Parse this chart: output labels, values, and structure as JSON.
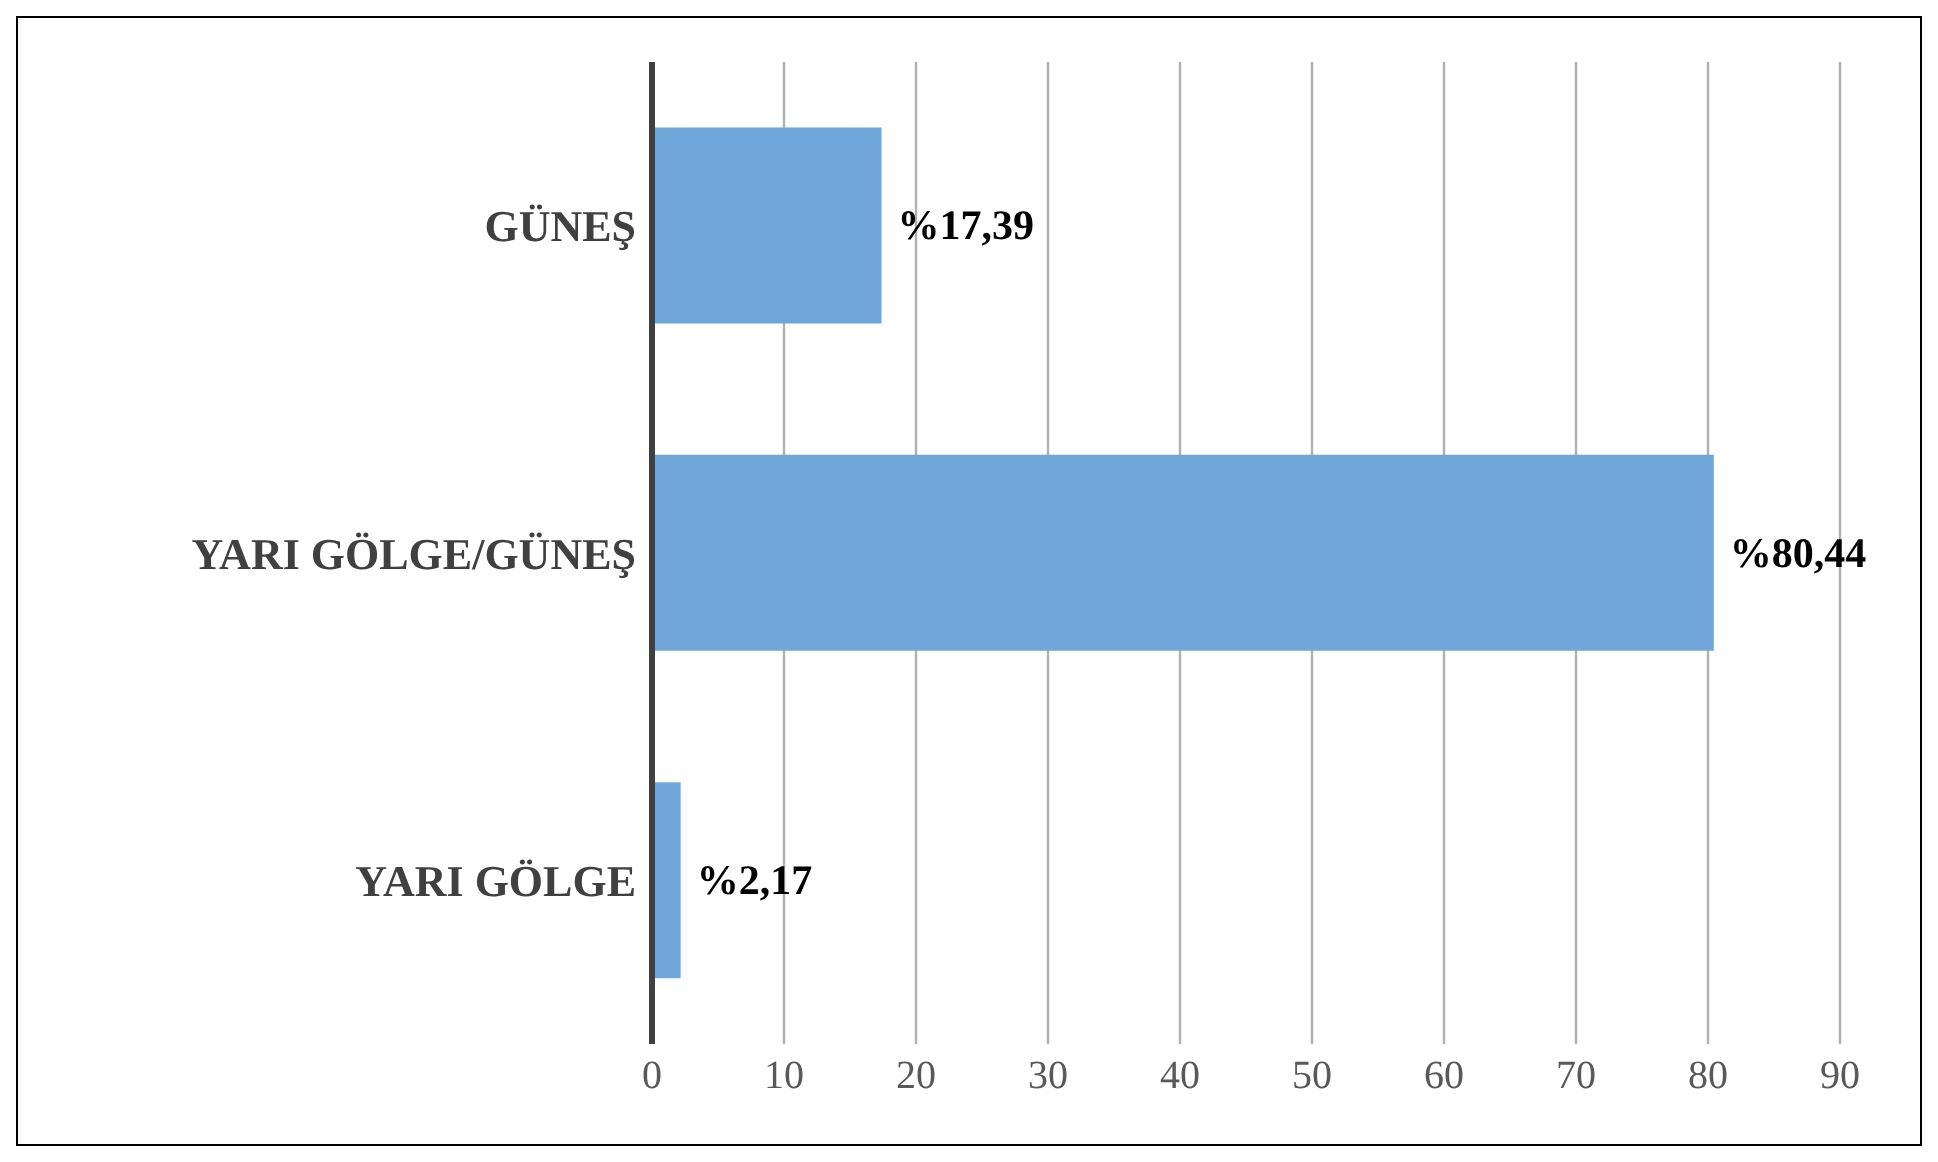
{
  "chart_data": {
    "type": "bar",
    "orientation": "horizontal",
    "categories": [
      "GÜNEŞ",
      "YARI GÖLGE/GÜNEŞ",
      "YARI GÖLGE"
    ],
    "values": [
      17.39,
      80.44,
      2.17
    ],
    "value_labels": [
      "%17,39",
      "%80,44",
      "%2,17"
    ],
    "color": "#6fa7db",
    "xlim": [
      0,
      90
    ],
    "xticks": [
      0,
      10,
      20,
      30,
      40,
      50,
      60,
      70,
      80,
      90
    ],
    "grid": "x",
    "legend": false
  }
}
